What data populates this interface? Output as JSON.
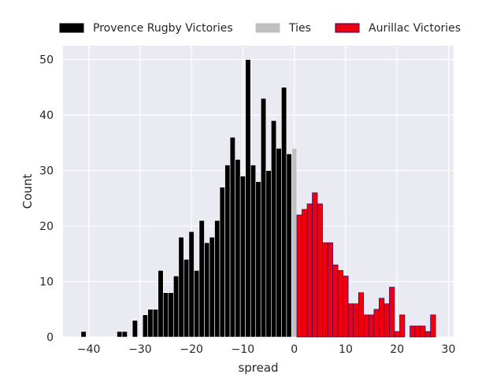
{
  "chart_data": {
    "type": "bar",
    "xlabel": "spread",
    "ylabel": "Count",
    "xlim": [
      -45,
      31
    ],
    "ylim": [
      0,
      52.5
    ],
    "xticks": [
      -40,
      -30,
      -20,
      -10,
      0,
      10,
      20,
      30
    ],
    "xtick_labels": [
      "−40",
      "−30",
      "−20",
      "−10",
      "0",
      "10",
      "20",
      "30"
    ],
    "yticks": [
      0,
      10,
      20,
      30,
      40,
      50
    ],
    "ytick_labels": [
      "0",
      "10",
      "20",
      "30",
      "40",
      "50"
    ],
    "grid": true,
    "legend_position": "top",
    "colors": {
      "background": "#eaeaf2",
      "grid": "#ffffff",
      "provence": "#000000",
      "ties": "#c0c0c0",
      "aurillac": "#ee0010",
      "aurillac_edge": "#2a0060"
    },
    "series": [
      {
        "name": "Provence Rugby Victories",
        "key": "provence",
        "x": [
          -41,
          -34,
          -33,
          -31,
          -29,
          -28,
          -27,
          -26,
          -25,
          -24,
          -23,
          -22,
          -21,
          -20,
          -19,
          -18,
          -17,
          -16,
          -15,
          -14,
          -13,
          -12,
          -11,
          -10,
          -9,
          -8,
          -7,
          -6,
          -5,
          -4,
          -3,
          -2,
          -1
        ],
        "values": [
          1,
          1,
          1,
          3,
          4,
          5,
          5,
          12,
          8,
          8,
          11,
          18,
          14,
          19,
          12,
          21,
          17,
          18,
          21,
          27,
          31,
          36,
          32,
          29,
          50,
          31,
          28,
          43,
          30,
          39,
          34,
          45,
          33
        ]
      },
      {
        "name": "Ties",
        "key": "ties",
        "x": [
          0
        ],
        "values": [
          34
        ]
      },
      {
        "name": "Aurillac Victories",
        "key": "aurillac",
        "x": [
          1,
          2,
          3,
          4,
          5,
          6,
          7,
          8,
          9,
          10,
          11,
          12,
          13,
          14,
          15,
          16,
          17,
          18,
          19,
          20,
          21,
          23,
          24,
          25,
          26,
          27
        ],
        "values": [
          22,
          23,
          24,
          26,
          24,
          17,
          17,
          13,
          12,
          11,
          6,
          6,
          8,
          4,
          4,
          5,
          7,
          6,
          9,
          1,
          4,
          2,
          2,
          2,
          1,
          4
        ]
      }
    ]
  }
}
